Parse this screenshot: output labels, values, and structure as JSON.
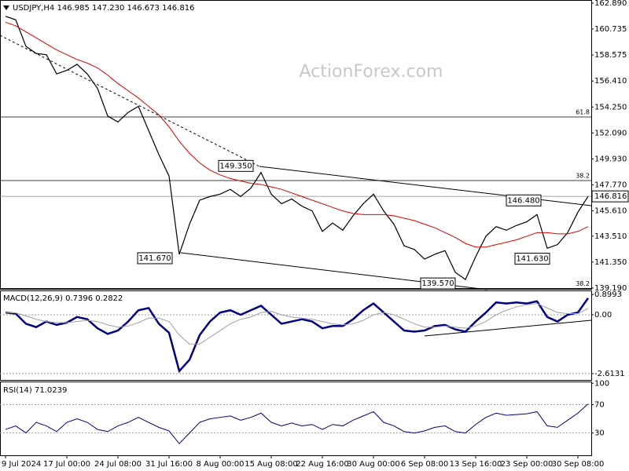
{
  "chart_data": [
    {
      "type": "line",
      "title": "USDJPY,H4 146.985 147.230 146.673 146.816",
      "watermark": "ActionForex.com",
      "ylim": [
        139.12,
        163.15
      ],
      "yticks": [
        {
          "value": 162.89,
          "label": "162.890"
        },
        160.735,
        158.575,
        {
          "value": 156.41,
          "label": "156.410"
        },
        {
          "value": 154.25,
          "label": "154.250"
        },
        {
          "value": 152.09,
          "label": "152.090"
        },
        {
          "value": 149.93,
          "label": "149.930"
        },
        {
          "value": 147.77,
          "label": "147.770"
        },
        {
          "value": 145.61,
          "label": "145.610"
        },
        {
          "value": 143.51,
          "label": "143.510"
        },
        {
          "value": 141.35,
          "label": "141.350"
        },
        {
          "value": 139.19,
          "label": "139.190"
        }
      ],
      "last_price": 146.816,
      "levels": [
        {
          "value": 153.42,
          "label": "61.8"
        },
        {
          "value": 148.13,
          "label": "38.2"
        },
        {
          "value": 139.15,
          "label": "38.2"
        }
      ],
      "annotations": [
        {
          "value": 149.35,
          "label": "149.350"
        },
        {
          "value": 141.67,
          "label": "141.670"
        },
        {
          "value": 146.48,
          "label": "146.480"
        },
        {
          "value": 141.63,
          "label": "141.630"
        },
        {
          "value": 139.57,
          "label": "139.570"
        }
      ],
      "series": [
        {
          "color": "#000000",
          "values": [
            161.8,
            161.5,
            159.3,
            158.7,
            158.6,
            157.0,
            157.3,
            157.8,
            157.0,
            155.8,
            153.5,
            153.0,
            153.8,
            154.3,
            152.3,
            150.3,
            148.5,
            142.0,
            144.5,
            146.5,
            146.8,
            147.0,
            147.4,
            146.8,
            147.5,
            148.8,
            147.0,
            146.2,
            146.6,
            146.0,
            145.6,
            143.9,
            144.6,
            144.0,
            145.2,
            146.2,
            147.0,
            145.6,
            144.5,
            142.7,
            142.4,
            141.6,
            142.0,
            142.3,
            140.5,
            139.9,
            141.8,
            143.5,
            144.3,
            144.0,
            144.4,
            144.7,
            145.3,
            142.5,
            142.8,
            143.8,
            145.5,
            146.816
          ]
        },
        {
          "color": "#dd0000",
          "values": [
            161.3,
            161.0,
            160.5,
            160.0,
            159.5,
            159.0,
            158.6,
            158.2,
            157.9,
            157.5,
            156.9,
            156.2,
            155.6,
            155.0,
            154.3,
            153.6,
            152.6,
            151.4,
            150.4,
            149.6,
            149.0,
            148.6,
            148.3,
            148.1,
            147.9,
            147.8,
            147.6,
            147.4,
            147.1,
            146.8,
            146.5,
            146.2,
            145.9,
            145.6,
            145.4,
            145.3,
            145.3,
            145.3,
            145.2,
            145.0,
            144.8,
            144.5,
            144.2,
            143.8,
            143.4,
            142.9,
            142.6,
            142.6,
            142.8,
            143.0,
            143.2,
            143.5,
            143.8,
            143.8,
            143.7,
            143.7,
            143.9,
            144.3
          ]
        }
      ]
    },
    {
      "type": "line",
      "title": "MACD(12,26,9) 0.7396 0.2822",
      "ylim": [
        -2.93,
        1.08
      ],
      "yticks": [
        0.8993,
        {
          "value": 0,
          "label": "0.00"
        },
        -2.6131
      ],
      "series": [
        {
          "color": "#000080",
          "values": [
            0.1,
            0.05,
            -0.4,
            -0.55,
            -0.3,
            -0.45,
            -0.35,
            -0.1,
            -0.2,
            -0.6,
            -0.85,
            -0.7,
            -0.3,
            0.2,
            0.3,
            -0.4,
            -0.8,
            -2.5,
            -2.0,
            -0.9,
            -0.3,
            0.1,
            0.2,
            0.0,
            0.2,
            0.4,
            0.0,
            -0.4,
            -0.3,
            -0.2,
            -0.3,
            -0.6,
            -0.5,
            -0.5,
            -0.2,
            0.2,
            0.5,
            0.1,
            -0.3,
            -0.7,
            -0.75,
            -0.7,
            -0.5,
            -0.45,
            -0.65,
            -0.75,
            -0.3,
            0.1,
            0.55,
            0.5,
            0.55,
            0.5,
            0.6,
            -0.1,
            -0.3,
            0.0,
            0.1,
            0.7396
          ]
        },
        {
          "color": "#a0a0a0",
          "values": [
            0.1,
            0.08,
            -0.05,
            -0.2,
            -0.3,
            -0.35,
            -0.35,
            -0.3,
            -0.25,
            -0.3,
            -0.45,
            -0.55,
            -0.5,
            -0.35,
            -0.15,
            -0.15,
            -0.3,
            -0.9,
            -1.3,
            -1.3,
            -1.0,
            -0.7,
            -0.4,
            -0.2,
            -0.1,
            0.1,
            0.15,
            0.0,
            -0.1,
            -0.15,
            -0.2,
            -0.3,
            -0.4,
            -0.45,
            -0.4,
            -0.25,
            0.0,
            0.1,
            0.0,
            -0.2,
            -0.4,
            -0.55,
            -0.55,
            -0.5,
            -0.55,
            -0.6,
            -0.5,
            -0.3,
            0.0,
            0.2,
            0.35,
            0.45,
            0.5,
            0.3,
            0.1,
            0.05,
            0.05,
            0.2822
          ]
        }
      ]
    },
    {
      "type": "line",
      "title": "RSI(14) 71.0239",
      "ylim": [
        -1.4,
        101.4
      ],
      "yticks": [
        100,
        70,
        30
      ],
      "categories": [
        "9 Jul 2024",
        null,
        null,
        null,
        null,
        null,
        "17 Jul 00:00",
        null,
        null,
        null,
        null,
        "24 Jul 08:00",
        null,
        null,
        null,
        null,
        "31 Jul 16:00",
        null,
        null,
        null,
        null,
        "8 Aug 00:00",
        null,
        null,
        null,
        null,
        "15 Aug 08:00",
        null,
        null,
        null,
        null,
        "22 Aug 16:00",
        null,
        null,
        null,
        null,
        "30 Aug 00:00",
        null,
        null,
        null,
        null,
        "6 Sep 08:00",
        null,
        null,
        null,
        null,
        "13 Sep 16:00",
        null,
        null,
        null,
        null,
        "23 Sep 00:00",
        null,
        null,
        null,
        null,
        "30 Sep 08:00",
        null
      ],
      "series": [
        {
          "color": "#000080",
          "values": [
            35,
            40,
            30,
            45,
            40,
            32,
            45,
            50,
            45,
            35,
            32,
            40,
            45,
            52,
            45,
            38,
            33,
            15,
            30,
            45,
            50,
            52,
            54,
            48,
            52,
            58,
            45,
            40,
            44,
            40,
            42,
            35,
            42,
            40,
            48,
            54,
            60,
            45,
            40,
            32,
            30,
            33,
            38,
            40,
            32,
            30,
            42,
            52,
            58,
            55,
            56,
            57,
            60,
            40,
            38,
            48,
            58,
            71.0239
          ]
        }
      ]
    }
  ]
}
